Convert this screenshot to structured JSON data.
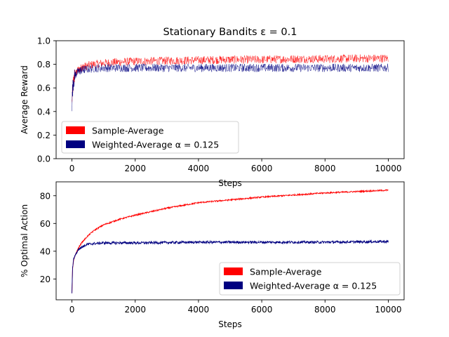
{
  "figure": {
    "title": "Stationary Bandits ε = 0.1"
  },
  "chart_data": [
    {
      "type": "line",
      "title": "Stationary Bandits ε = 0.1",
      "xlabel": "Steps",
      "ylabel": "Average Reward",
      "xlim": [
        -500,
        10500
      ],
      "ylim": [
        0.0,
        1.0
      ],
      "xticks": [
        "0",
        "2000",
        "4000",
        "6000",
        "8000",
        "10000"
      ],
      "yticks": [
        "0.0",
        "0.2",
        "0.4",
        "0.6",
        "0.8",
        "1.0"
      ],
      "grid": false,
      "legend": "lower-left",
      "series": [
        {
          "name": "Sample-Average",
          "color": "#ff0000",
          "noise": 0.035,
          "x": [
            0,
            20,
            50,
            100,
            200,
            300,
            500,
            700,
            1000,
            1500,
            2000,
            3000,
            4000,
            5000,
            6000,
            7000,
            8000,
            9000,
            10000
          ],
          "y": [
            0.48,
            0.58,
            0.66,
            0.71,
            0.75,
            0.77,
            0.79,
            0.8,
            0.81,
            0.82,
            0.825,
            0.83,
            0.835,
            0.84,
            0.84,
            0.845,
            0.845,
            0.85,
            0.85
          ]
        },
        {
          "name": "Weighted-Average α = 0.125",
          "color": "#000080",
          "noise": 0.035,
          "x": [
            0,
            20,
            50,
            100,
            200,
            300,
            500,
            700,
            1000,
            2000,
            4000,
            6000,
            8000,
            10000
          ],
          "y": [
            0.46,
            0.58,
            0.66,
            0.71,
            0.74,
            0.75,
            0.76,
            0.765,
            0.77,
            0.77,
            0.77,
            0.77,
            0.77,
            0.77
          ]
        }
      ]
    },
    {
      "type": "line",
      "title": "",
      "xlabel": "Steps",
      "ylabel": "% Optimal Action",
      "xlim": [
        -500,
        10500
      ],
      "ylim": [
        5,
        90
      ],
      "xticks": [
        "0",
        "2000",
        "4000",
        "6000",
        "8000",
        "10000"
      ],
      "yticks": [
        "20",
        "40",
        "60",
        "80"
      ],
      "grid": false,
      "legend": "lower-right",
      "series": [
        {
          "name": "Sample-Average",
          "color": "#ff0000",
          "noise": 0.5,
          "x": [
            0,
            20,
            50,
            100,
            200,
            300,
            500,
            700,
            1000,
            1500,
            2000,
            3000,
            4000,
            5000,
            6000,
            7000,
            8000,
            9000,
            10000
          ],
          "y": [
            10,
            27,
            33,
            37,
            42,
            46,
            51,
            55,
            59,
            63,
            66,
            71,
            75,
            77,
            79,
            80.5,
            82,
            83,
            84
          ]
        },
        {
          "name": "Weighted-Average α = 0.125",
          "color": "#000080",
          "noise": 0.9,
          "x": [
            0,
            20,
            50,
            100,
            200,
            300,
            500,
            700,
            1000,
            2000,
            4000,
            6000,
            8000,
            10000
          ],
          "y": [
            10,
            28,
            34,
            37,
            41,
            43,
            45,
            45.5,
            46,
            46,
            46.5,
            46.5,
            46.5,
            47
          ]
        }
      ]
    }
  ]
}
